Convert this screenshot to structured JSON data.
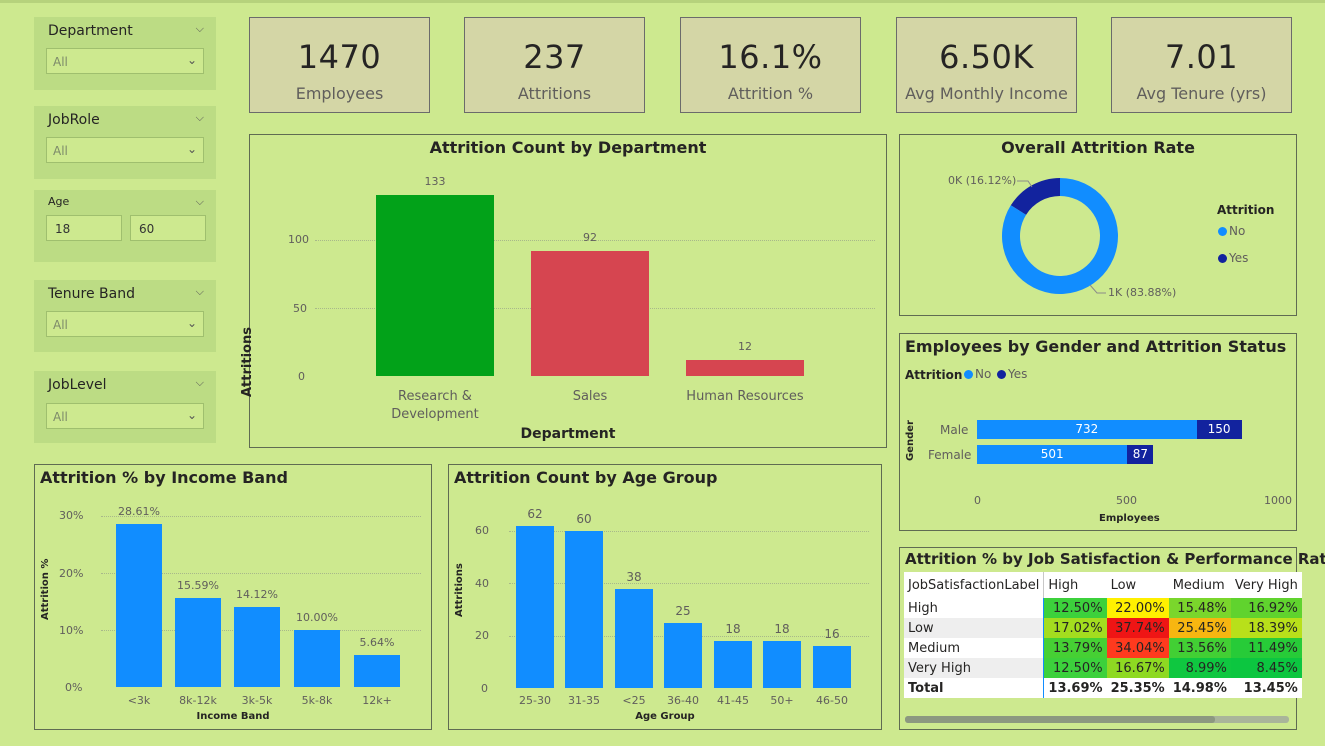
{
  "colors": {
    "background": "#cde98f",
    "bar_blue": "#118dff",
    "bar_green": "#02a219",
    "bar_red": "#d64550",
    "navy": "#12239e"
  },
  "slicers": {
    "department": {
      "title": "Department",
      "value": "All"
    },
    "jobrole": {
      "title": "JobRole",
      "value": "All"
    },
    "age": {
      "title": "Age",
      "min": "18",
      "max": "60"
    },
    "tenure": {
      "title": "Tenure Band",
      "value": "All"
    },
    "joblevel": {
      "title": "JobLevel",
      "value": "All"
    }
  },
  "kpis": [
    {
      "value": "1470",
      "label": "Employees"
    },
    {
      "value": "237",
      "label": "Attritions"
    },
    {
      "value": "16.1%",
      "label": "Attrition %"
    },
    {
      "value": "6.50K",
      "label": "Avg Monthly Income"
    },
    {
      "value": "7.01",
      "label": "Avg Tenure (yrs)"
    }
  ],
  "chart_data": [
    {
      "id": "dept",
      "type": "bar",
      "title": "Attrition Count by Department",
      "xlabel": "Department",
      "ylabel": "Attritions",
      "categories_line1": [
        "Research &",
        "Sales",
        "Human Resources"
      ],
      "categories_line2": [
        "Development",
        "",
        ""
      ],
      "values": [
        133,
        92,
        12
      ],
      "data_labels": [
        "133",
        "92",
        "12"
      ],
      "yticks": [
        "100",
        "50",
        "0"
      ],
      "ylim": [
        0,
        140
      ]
    },
    {
      "id": "donut",
      "type": "pie",
      "title": "Overall Attrition Rate",
      "legend_title": "Attrition",
      "legend": [
        "No",
        "Yes"
      ],
      "values": [
        83.88,
        16.12
      ],
      "labels": [
        "1K (83.88%)",
        "0K (16.12%)"
      ]
    },
    {
      "id": "gender",
      "type": "bar",
      "title": "Employees by Gender and Attrition Status",
      "legend_title": "Attrition",
      "legend": [
        "No",
        "Yes"
      ],
      "categories": [
        "Male",
        "Female"
      ],
      "series": [
        {
          "name": "No",
          "values": [
            732,
            501
          ]
        },
        {
          "name": "Yes",
          "values": [
            150,
            87
          ]
        }
      ],
      "data_labels_no": [
        "732",
        "501"
      ],
      "data_labels_yes": [
        "150",
        "87"
      ],
      "xticks": [
        "0",
        "500",
        "1000"
      ],
      "xlim": [
        0,
        1000
      ],
      "xlabel": "Employees",
      "ylabel": "Gender"
    },
    {
      "id": "income",
      "type": "bar",
      "title": "Attrition % by Income Band",
      "xlabel": "Income Band",
      "ylabel": "Attrition %",
      "categories": [
        "<3k",
        "8k-12k",
        "3k-5k",
        "5k-8k",
        "12k+"
      ],
      "values": [
        28.61,
        15.59,
        14.12,
        10.0,
        5.64
      ],
      "data_labels": [
        "28.61%",
        "15.59%",
        "14.12%",
        "10.00%",
        "5.64%"
      ],
      "yticks": [
        "30%",
        "20%",
        "10%",
        "0%"
      ],
      "ylim": [
        0,
        30
      ]
    },
    {
      "id": "age",
      "type": "bar",
      "title": "Attrition Count by Age Group",
      "xlabel": "Age Group",
      "ylabel": "Attritions",
      "categories": [
        "25-30",
        "31-35",
        "<25",
        "36-40",
        "41-45",
        "50+",
        "46-50"
      ],
      "values": [
        62,
        60,
        38,
        25,
        18,
        18,
        16
      ],
      "data_labels": [
        "62",
        "60",
        "38",
        "25",
        "18",
        "18",
        "16"
      ],
      "yticks": [
        "60",
        "40",
        "20",
        "0"
      ],
      "ylim": [
        0,
        60
      ]
    }
  ],
  "matrix": {
    "title": "Attrition % by Job Satisfaction & Performance Rating",
    "corner": "JobSatisfactionLabel",
    "columns": [
      "High",
      "Low",
      "Medium",
      "Very High"
    ],
    "rows": [
      {
        "label": "High",
        "values": [
          "12.50%",
          "22.00%",
          "15.48%",
          "16.92%"
        ],
        "colors": [
          "#3cd13c",
          "#fff000",
          "#7ad62c",
          "#60d32e"
        ]
      },
      {
        "label": "Low",
        "values": [
          "17.02%",
          "37.74%",
          "25.45%",
          "18.39%"
        ],
        "colors": [
          "#a3dd1f",
          "#ef1515",
          "#f7b611",
          "#b8e01a"
        ]
      },
      {
        "label": "Medium",
        "values": [
          "13.79%",
          "34.04%",
          "13.56%",
          "11.49%"
        ],
        "colors": [
          "#46d034",
          "#ff3a1e",
          "#42cf34",
          "#27cb38"
        ]
      },
      {
        "label": "Very High",
        "values": [
          "12.50%",
          "16.67%",
          "8.99%",
          "8.45%"
        ],
        "colors": [
          "#3cd13c",
          "#8ed922",
          "#0fc740",
          "#0cc640"
        ]
      }
    ],
    "total": {
      "label": "Total",
      "values": [
        "13.69%",
        "25.35%",
        "14.98%",
        "13.45%"
      ]
    }
  }
}
